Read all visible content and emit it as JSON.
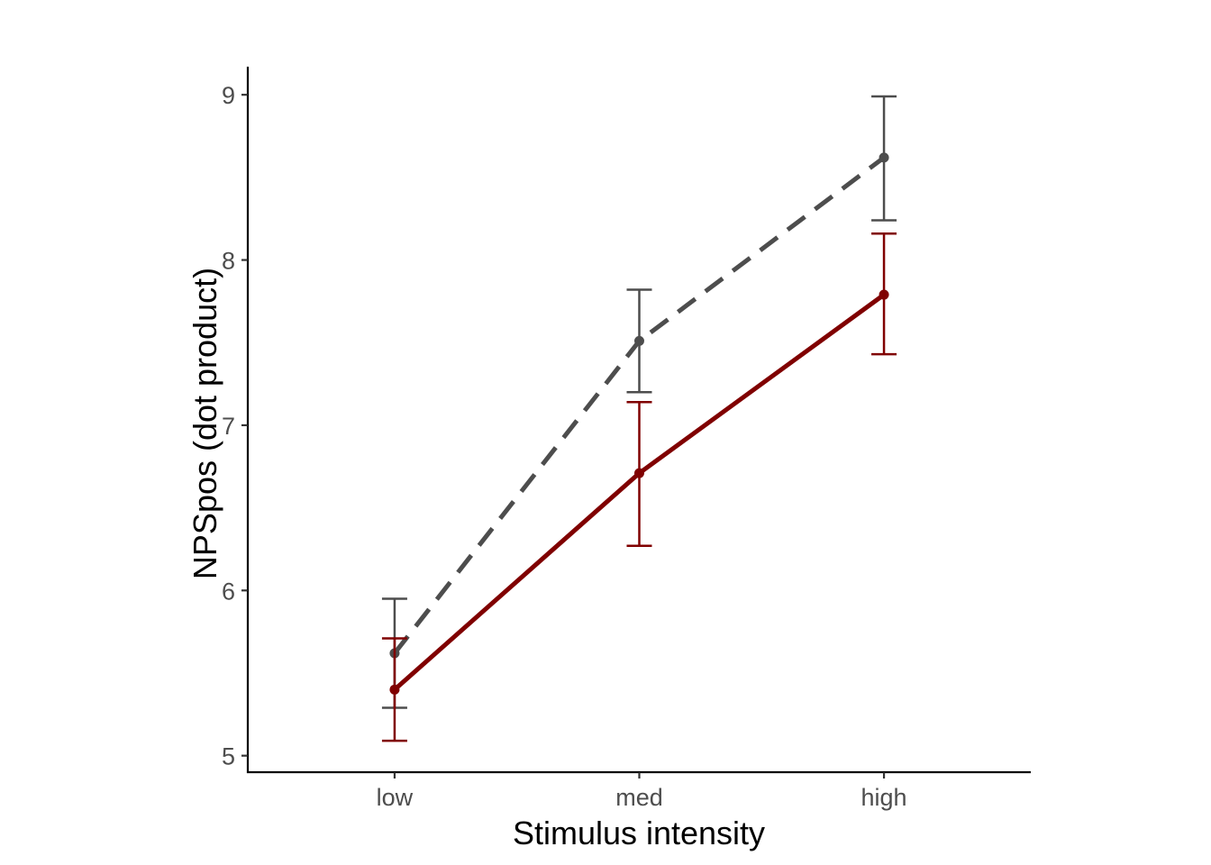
{
  "chart_data": {
    "type": "line",
    "title": "",
    "xlabel": "Stimulus intensity",
    "ylabel": "NPSpos (dot product)",
    "categories": [
      "low",
      "med",
      "high"
    ],
    "ylim": [
      4.9,
      9.17
    ],
    "yticks": [
      5,
      6,
      7,
      8,
      9
    ],
    "grid": false,
    "legend": "none",
    "series": [
      {
        "color": "#4d4d4d",
        "line_style": "dashed",
        "values": [
          5.62,
          7.51,
          8.62
        ],
        "error_low": [
          5.29,
          7.2,
          8.24
        ],
        "error_high": [
          5.95,
          7.82,
          8.99
        ]
      },
      {
        "color": "#800000",
        "line_style": "solid",
        "values": [
          5.4,
          6.71,
          7.79
        ],
        "error_low": [
          5.09,
          6.27,
          7.43
        ],
        "error_high": [
          5.71,
          7.14,
          8.16
        ]
      }
    ]
  }
}
